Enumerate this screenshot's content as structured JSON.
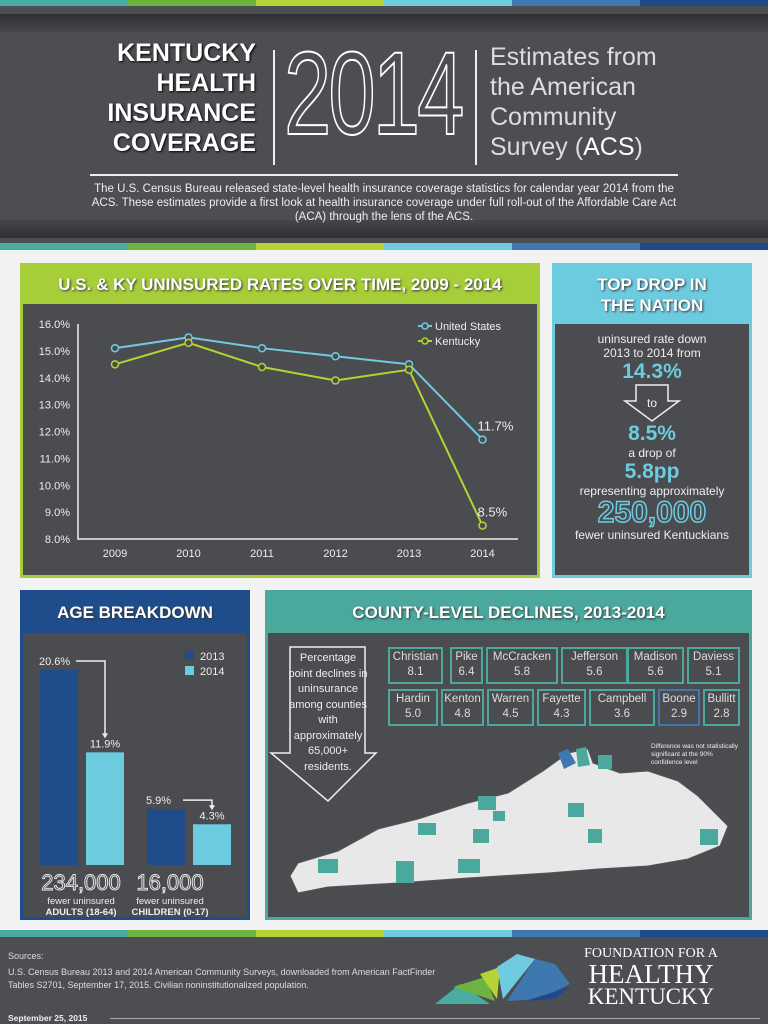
{
  "header": {
    "title_lines": [
      "KENTUCKY",
      "HEALTH",
      "INSURANCE",
      "COVERAGE"
    ],
    "year": "2014",
    "subtitle_lines": [
      "Estimates from",
      "the American",
      "Community",
      "Survey ("
    ],
    "subtitle_acs": "ACS",
    "subtitle_close": ")",
    "intro": "The U.S. Census Bureau released state-level health insurance coverage statistics for calendar year 2014 from the ACS. These estimates provide a first look at health insurance coverage under full roll-out of the Affordable Care Act (ACA) through the lens of the ACS."
  },
  "stripe_colors": [
    "#4aaba0",
    "#6db33f",
    "#b5d334",
    "#6fcbe0",
    "#3f78b0",
    "#1e4a8a"
  ],
  "chart_data": [
    {
      "type": "line",
      "title": "U.S. & KY UNINSURED RATES OVER TIME, 2009 - 2014",
      "categories": [
        "2009",
        "2010",
        "2011",
        "2012",
        "2013",
        "2014"
      ],
      "ylim": [
        8,
        16
      ],
      "yticks": [
        "16.0%",
        "15.0%",
        "14.0%",
        "13.0%",
        "12.0%",
        "11.0%",
        "10.0%",
        "9.0%",
        "8.0%"
      ],
      "series": [
        {
          "name": "United States",
          "color": "#6fcbe0",
          "values": [
            15.1,
            15.5,
            15.1,
            14.8,
            14.5,
            11.7
          ],
          "end_label": "11.7%"
        },
        {
          "name": "Kentucky",
          "color": "#b5d334",
          "values": [
            14.5,
            15.3,
            14.4,
            13.9,
            14.3,
            8.5
          ],
          "end_label": "8.5%"
        }
      ],
      "legend": "top-right",
      "grid": false
    },
    {
      "type": "bar",
      "title": "AGE BREAKDOWN",
      "categories": [
        "ADULTS (18-64)",
        "CHILDREN (0-17)"
      ],
      "series": [
        {
          "name": "2013",
          "color": "#1f4d8c",
          "values": [
            20.6,
            5.9
          ],
          "labels": [
            "20.6%",
            "5.9%"
          ]
        },
        {
          "name": "2014",
          "color": "#6dcbe0",
          "values": [
            11.9,
            4.3
          ],
          "labels": [
            "11.9%",
            "4.3%"
          ]
        }
      ],
      "counts": [
        "234,000",
        "16,000"
      ],
      "count_caption": "fewer uninsured"
    }
  ],
  "drop": {
    "title_lines": [
      "TOP DROP IN",
      "THE NATION"
    ],
    "line1": "uninsured rate down",
    "line2": "2013 to 2014 from",
    "from": "14.3%",
    "to_word": "to",
    "to": "8.5%",
    "drop_of": "a drop of",
    "pp": "5.8pp",
    "representing": "representing approximately",
    "count": "250,000",
    "fewer": "fewer uninsured Kentuckians"
  },
  "county": {
    "title": "COUNTY-LEVEL DECLINES, 2013-2014",
    "arrow_text": "Percentage point declines in uninsurance among counties with approximately 65,000+ residents.",
    "counties": [
      {
        "name": "Christian",
        "value": "8.1"
      },
      {
        "name": "Pike",
        "value": "6.4"
      },
      {
        "name": "McCracken",
        "value": "5.8"
      },
      {
        "name": "Jefferson",
        "value": "5.6"
      },
      {
        "name": "Madison",
        "value": "5.6"
      },
      {
        "name": "Daviess",
        "value": "5.1"
      },
      {
        "name": "Hardin",
        "value": "5.0"
      },
      {
        "name": "Kenton",
        "value": "4.8"
      },
      {
        "name": "Warren",
        "value": "4.5"
      },
      {
        "name": "Fayette",
        "value": "4.3"
      },
      {
        "name": "Campbell",
        "value": "3.6"
      },
      {
        "name": "Boone",
        "value": "2.9"
      },
      {
        "name": "Bullitt",
        "value": "2.8"
      }
    ],
    "note": "Difference was not statistically significant at the 90% confidence level"
  },
  "footer": {
    "sources_label": "Sources:",
    "sources": "U.S. Census Bureau 2013 and 2014 American Community Surveys, downloaded from American FactFinder Tables S2701, September 17, 2015. Civilian noninstitutionalized population.",
    "date": "September 25, 2015",
    "logo_lines": [
      "FOUNDATION FOR A",
      "HEALTHY",
      "KENTUCKY"
    ]
  }
}
